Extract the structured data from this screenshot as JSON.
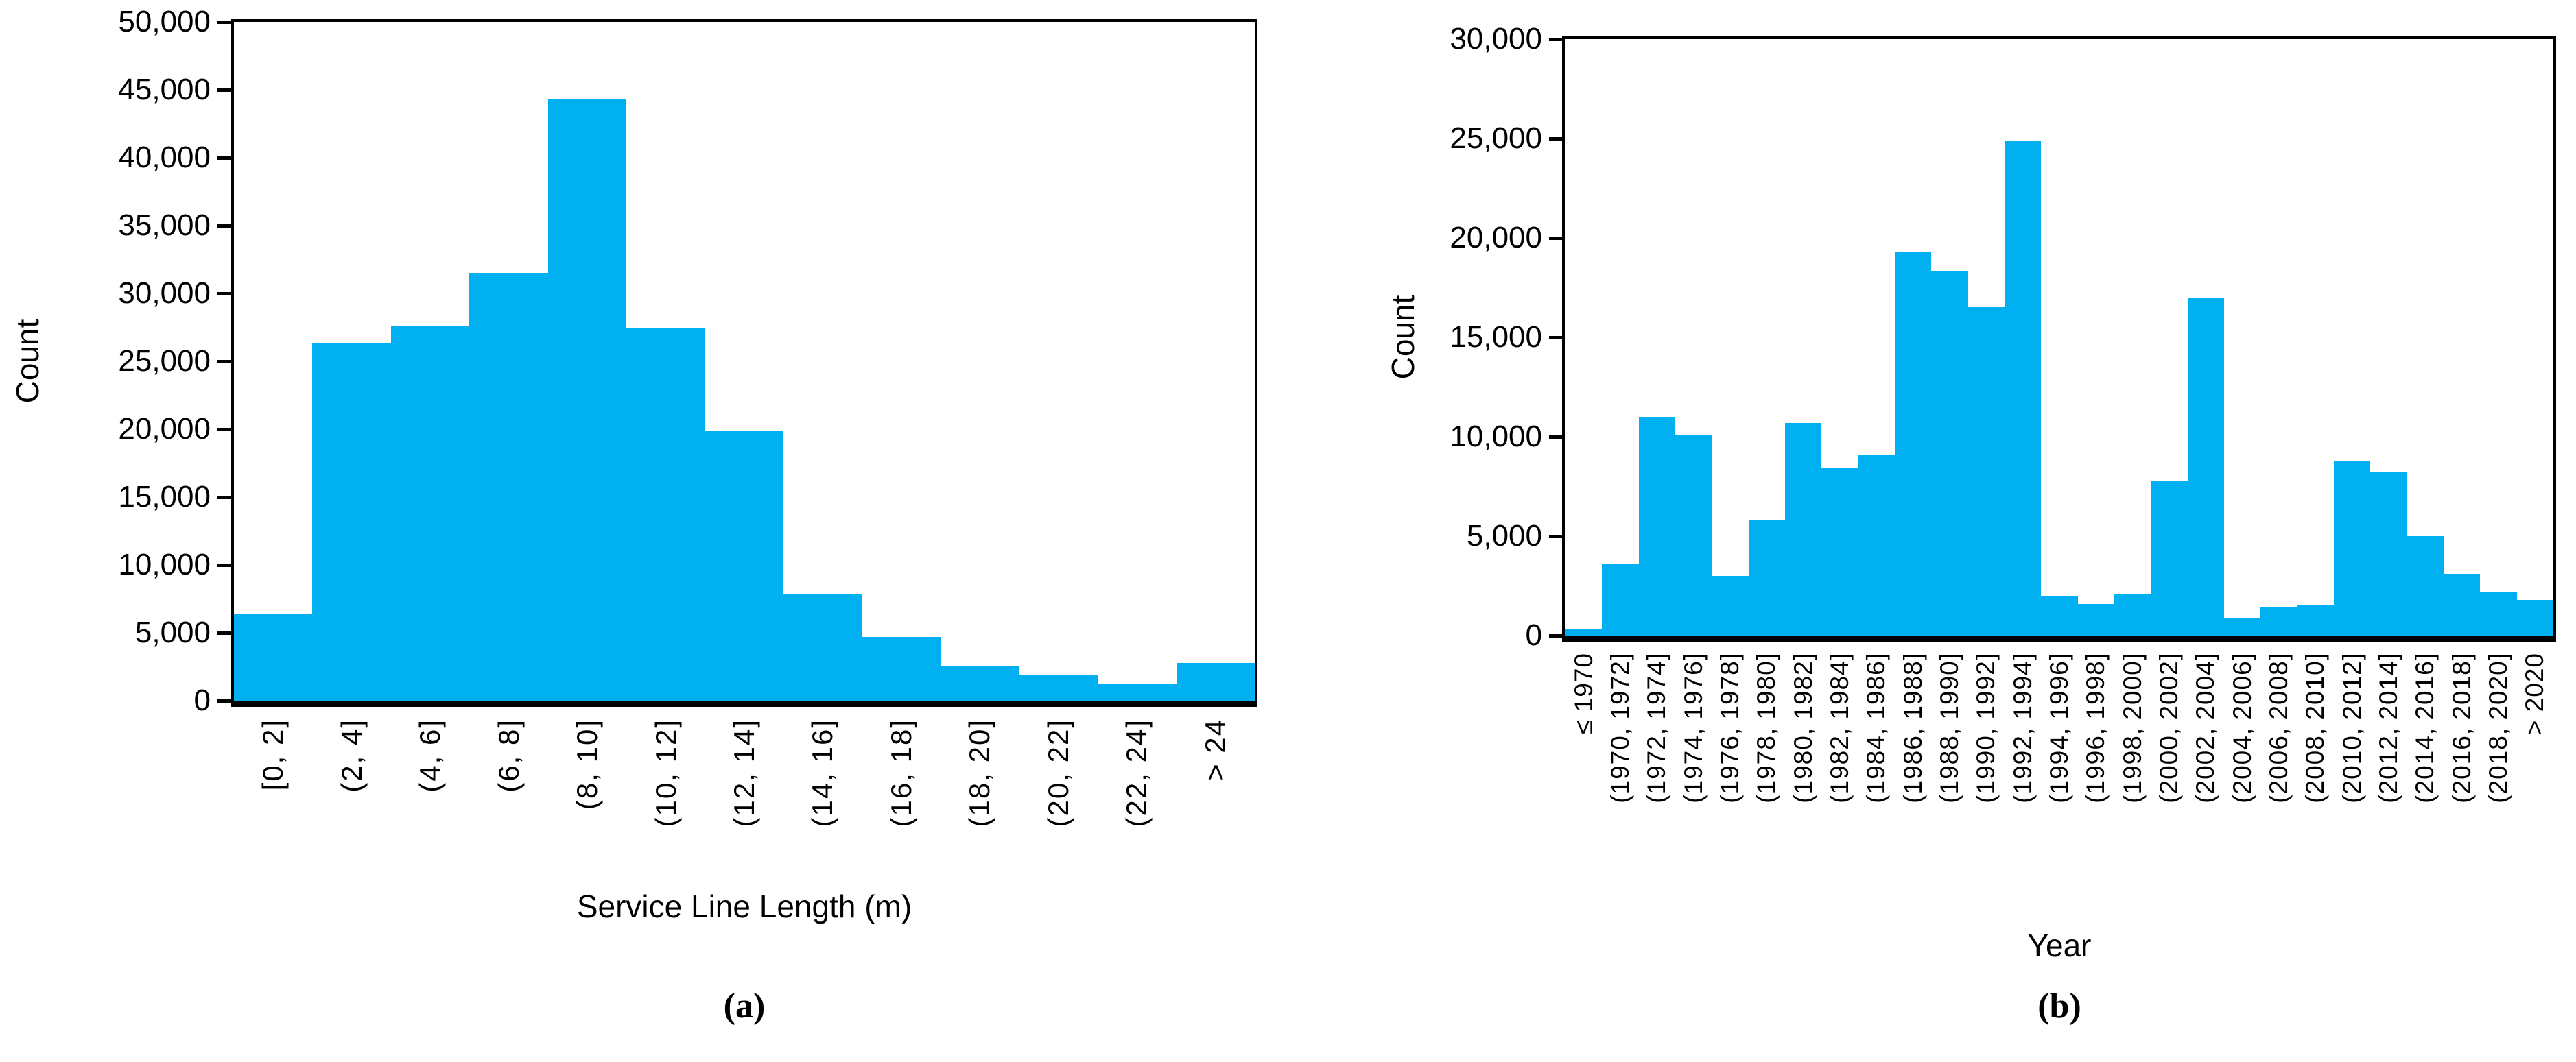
{
  "figure": {
    "bar_color": "#00B0F0",
    "axis_color": "#000000",
    "background": "#ffffff"
  },
  "chart_data": [
    {
      "type": "bar",
      "id": "a",
      "caption": "(a)",
      "title": "",
      "xlabel": "Service Line Length (m)",
      "ylabel": "Count",
      "ylim": [
        0,
        50000
      ],
      "ytick_step": 5000,
      "yticks": [
        "0",
        "5,000",
        "10,000",
        "15,000",
        "20,000",
        "25,000",
        "30,000",
        "35,000",
        "40,000",
        "45,000",
        "50,000"
      ],
      "grid": false,
      "legend": "none",
      "categories": [
        "[0, 2]",
        "(2, 4]",
        "(4, 6]",
        "(6, 8]",
        "(8, 10]",
        "(10, 12]",
        "(12, 14]",
        "(14, 16]",
        "(16, 18]",
        "(18, 20]",
        "(20, 22]",
        "(22, 24]",
        "> 24"
      ],
      "values": [
        6400,
        26300,
        27600,
        31500,
        44300,
        27400,
        19900,
        7900,
        4700,
        2500,
        1900,
        1200,
        2800
      ]
    },
    {
      "type": "bar",
      "id": "b",
      "caption": "(b)",
      "title": "",
      "xlabel": "Year",
      "ylabel": "Count",
      "ylim": [
        0,
        30000
      ],
      "ytick_step": 5000,
      "yticks": [
        "0",
        "5,000",
        "10,000",
        "15,000",
        "20,000",
        "25,000",
        "30,000"
      ],
      "grid": false,
      "legend": "none",
      "categories": [
        "≤ 1970",
        "(1970, 1972]",
        "(1972, 1974]",
        "(1974, 1976]",
        "(1976, 1978]",
        "(1978, 1980]",
        "(1980, 1982]",
        "(1982, 1984]",
        "(1984, 1986]",
        "(1986, 1988]",
        "(1988, 1990]",
        "(1990, 1992]",
        "(1992, 1994]",
        "(1994, 1996]",
        "(1996, 1998]",
        "(1998, 2000]",
        "(2000, 2002]",
        "(2002, 2004]",
        "(2004, 2006]",
        "(2006, 2008]",
        "(2008, 2010]",
        "(2010, 2012]",
        "(2012, 2014]",
        "(2014, 2016]",
        "(2016, 2018]",
        "(2018, 2020]",
        "> 2020"
      ],
      "values": [
        300,
        3600,
        11000,
        10100,
        3000,
        5800,
        10700,
        8400,
        9100,
        19300,
        18300,
        16500,
        24900,
        2000,
        1600,
        2100,
        7800,
        17000,
        850,
        1450,
        1550,
        8750,
        8200,
        5000,
        3100,
        2200,
        1800
      ]
    }
  ]
}
